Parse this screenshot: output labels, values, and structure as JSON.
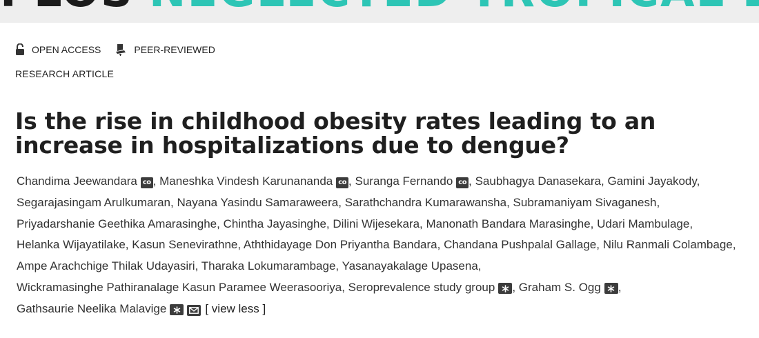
{
  "banner": {
    "plos": "PLOS",
    "journal": "NEGLECTED TROPICAL DISEASES"
  },
  "badges": {
    "open_access": "OPEN ACCESS",
    "peer_reviewed": "PEER-REVIEWED"
  },
  "article_type": "RESEARCH ARTICLE",
  "title": "Is the rise in childhood obesity rates leading to an increase in hospitalizations due to dengue?",
  "authors": [
    {
      "name": "Chandima Jeewandara",
      "tags": [
        "co"
      ]
    },
    {
      "name": "Maneshka Vindesh Karunananda",
      "tags": [
        "co"
      ]
    },
    {
      "name": "Suranga Fernando",
      "tags": [
        "co"
      ]
    },
    {
      "name": "Saubhagya Danasekara",
      "tags": []
    },
    {
      "name": "Gamini Jayakody",
      "tags": []
    },
    {
      "name": "Segarajasingam Arulkumaran",
      "tags": []
    },
    {
      "name": "Nayana Yasindu Samaraweera",
      "tags": []
    },
    {
      "name": "Sarathchandra Kumarawansha",
      "tags": []
    },
    {
      "name": "Subramaniyam Sivaganesh",
      "tags": []
    },
    {
      "name": "Priyadarshanie Geethika Amarasinghe",
      "tags": []
    },
    {
      "name": "Chintha Jayasinghe",
      "tags": []
    },
    {
      "name": "Dilini Wijesekara",
      "tags": []
    },
    {
      "name": "Manonath Bandara Marasinghe",
      "tags": []
    },
    {
      "name": "Udari Mambulage",
      "tags": []
    },
    {
      "name": "Helanka Wijayatilake",
      "tags": []
    },
    {
      "name": "Kasun Senevirathne",
      "tags": []
    },
    {
      "name": "Aththidayage Don Priyantha Bandara",
      "tags": []
    },
    {
      "name": "Chandana Pushpalal Gallage",
      "tags": []
    },
    {
      "name": "Nilu Ranmali Colambage",
      "tags": []
    },
    {
      "name": "Ampe Arachchige Thilak Udayasiri",
      "tags": []
    },
    {
      "name": "Tharaka Lokumarambage",
      "tags": []
    },
    {
      "name": "Yasanayakalage Upasena",
      "tags": []
    },
    {
      "name": "Wickramasinghe Pathiranalage Kasun Paramee Weerasooriya",
      "tags": []
    },
    {
      "name": "Seroprevalence study group",
      "tags": [
        "asterisk"
      ]
    },
    {
      "name": "Graham S. Ogg",
      "tags": [
        "asterisk"
      ]
    },
    {
      "name": "Gathsaurie Neelika Malavige",
      "tags": [
        "asterisk",
        "email"
      ]
    }
  ],
  "view_less": "[ view less ]",
  "colors": {
    "journal_accent": "#2dc5b5",
    "banner_bg": "#eeeeee",
    "tag_bg": "#3c3c3c"
  },
  "icons": {
    "open_access": "unlocked-padlock-icon",
    "peer_reviewed": "peer-reviewed-icon"
  }
}
